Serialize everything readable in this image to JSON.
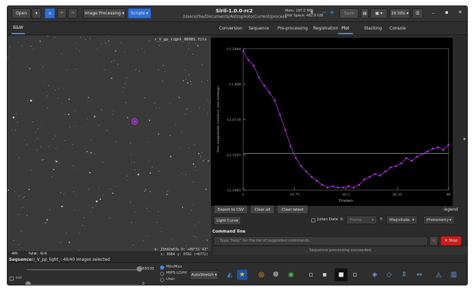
{
  "titlebar": {
    "open_label": "Open",
    "image_processing_label": "Image Processing",
    "scripts_label": "Scripts",
    "app_title": "Siril-1.0.0-rc2",
    "path": "/Users/rbe/Documents/Astrophoto/Current/process",
    "mem": "Mem: 197.0 MiB",
    "disk": "Disk Space: 482.9 GiB",
    "threads": "8",
    "save_label": "Save",
    "bits_label": "16 bits"
  },
  "left_panel": {
    "tab_label": "B&W",
    "image_filename": "r_V_pp_light_00001.fits",
    "footer_zoom": "40%",
    "footer_fwhm": "fwhm: N/A",
    "footer_coords_radec": "α: 23h02m53s δ: +09°51'43\"",
    "footer_coords_xy": "x: 0984 y: 0782 (=8772)",
    "sequence_label": "Sequence:",
    "sequence_text": "r_V_pp_light_: 40/40 images selected"
  },
  "right_tabs": [
    "Conversion",
    "Sequence",
    "Pre-processing",
    "Registration",
    "Plot",
    "Stacking",
    "Console"
  ],
  "plot_panel": {
    "export_csv_label": "Export to CSV",
    "clear_all_label": "Clear all",
    "clear_latest_label": "Clear latest",
    "legend_label": "legend",
    "light_curve_label": "Light Curve",
    "julian_date_label": "Julian Date",
    "x_label": "X:",
    "x_value": "Frame",
    "y_label": "Y:",
    "y_value": "Magnitude",
    "photometry_value": "Photometry"
  },
  "chart_data": {
    "type": "line",
    "xlabel": "Frames",
    "ylabel": "Star magnitude (relative, use setmag)",
    "xlim": [
      1,
      40
    ],
    "ylim": [
      -12.5987,
      -11.5444
    ],
    "x_ticks": [
      "1",
      "10.75",
      "20.5",
      "30.25",
      "40"
    ],
    "y_ticks": [
      "-11.5444",
      "-11.808",
      "-12.0716",
      "-12.3351",
      "-12.5987"
    ],
    "series": [
      {
        "color": "#b030e0",
        "x": [
          1,
          2,
          3,
          4,
          5,
          6,
          7,
          8,
          9,
          10,
          11,
          12,
          13,
          14,
          15,
          16,
          17,
          18,
          19,
          20,
          21,
          22,
          23,
          24,
          25,
          26,
          27,
          28,
          29,
          30,
          31,
          32,
          33,
          34,
          35,
          36,
          37,
          38,
          39,
          40
        ],
        "values": [
          -11.56,
          -11.63,
          -11.67,
          -11.76,
          -11.82,
          -11.87,
          -11.93,
          -12.04,
          -12.15,
          -12.27,
          -12.36,
          -12.42,
          -12.46,
          -12.5,
          -12.53,
          -12.56,
          -12.58,
          -12.57,
          -12.58,
          -12.58,
          -12.57,
          -12.58,
          -12.56,
          -12.52,
          -12.5,
          -12.48,
          -12.49,
          -12.46,
          -12.43,
          -12.42,
          -12.4,
          -12.36,
          -12.38,
          -12.35,
          -12.33,
          -12.31,
          -12.29,
          -12.28,
          -12.3,
          -12.26
        ]
      }
    ],
    "reference_line": {
      "color": "#30c890",
      "y": -12.325
    },
    "grid": false
  },
  "command_line": {
    "title": "Command line",
    "placeholder": "Type \"help\" for the list of supported commands",
    "stop_label": "Stop",
    "status": "Sequence processing succeeded."
  },
  "bottom": {
    "max_value": "65535",
    "min_value": "0",
    "cut_label": "cut",
    "radio_minmax": "Min/Max",
    "radio_mips": "MIPS-LO/HI",
    "radio_user": "User",
    "autostretch_label": "AutoStretch"
  }
}
